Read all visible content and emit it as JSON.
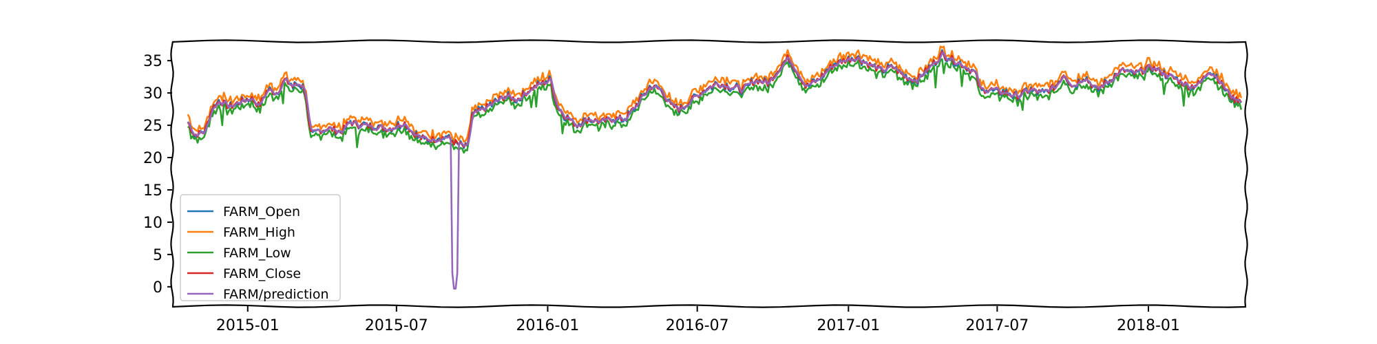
{
  "chart_data": {
    "type": "line",
    "title": "",
    "xlabel": "",
    "ylabel": "",
    "x_range": [
      "2014-10-01",
      "2018-04-30"
    ],
    "ylim": [
      -3,
      38
    ],
    "x_ticks": [
      "2015-01",
      "2015-07",
      "2016-01",
      "2016-07",
      "2017-01",
      "2017-07",
      "2018-01"
    ],
    "y_ticks": [
      0,
      5,
      10,
      15,
      20,
      25,
      30,
      35
    ],
    "legend_position": "lower-left",
    "grid": false,
    "colors": {
      "open": "#1f77b4",
      "high": "#ff7f0e",
      "low": "#2ca02c",
      "close": "#d62728",
      "prediction": "#9467bd"
    },
    "series": [
      {
        "name": "FARM_Open",
        "color": "#1f77b4"
      },
      {
        "name": "FARM_High",
        "color": "#ff7f0e"
      },
      {
        "name": "FARM_Low",
        "color": "#2ca02c"
      },
      {
        "name": "FARM_Close",
        "color": "#d62728"
      },
      {
        "name": "FARM/prediction",
        "color": "#9467bd"
      }
    ],
    "close_points": [
      [
        "2014-10-20",
        25.5
      ],
      [
        "2014-10-28",
        23.5
      ],
      [
        "2014-11-10",
        24.0
      ],
      [
        "2014-11-18",
        27.5
      ],
      [
        "2014-11-28",
        28.8
      ],
      [
        "2014-12-10",
        27.8
      ],
      [
        "2014-12-20",
        28.5
      ],
      [
        "2015-01-05",
        29.2
      ],
      [
        "2015-01-15",
        28.0
      ],
      [
        "2015-01-25",
        30.5
      ],
      [
        "2015-02-05",
        30.0
      ],
      [
        "2015-02-15",
        32.0
      ],
      [
        "2015-02-25",
        31.0
      ],
      [
        "2015-03-05",
        31.5
      ],
      [
        "2015-03-12",
        30.5
      ],
      [
        "2015-03-18",
        23.5
      ],
      [
        "2015-03-28",
        24.2
      ],
      [
        "2015-04-10",
        24.5
      ],
      [
        "2015-04-25",
        24.0
      ],
      [
        "2015-05-05",
        25.5
      ],
      [
        "2015-05-20",
        25.0
      ],
      [
        "2015-06-05",
        24.8
      ],
      [
        "2015-06-20",
        24.5
      ],
      [
        "2015-07-01",
        24.8
      ],
      [
        "2015-07-10",
        25.5
      ],
      [
        "2015-07-20",
        24.0
      ],
      [
        "2015-07-30",
        23.0
      ],
      [
        "2015-08-15",
        22.8
      ],
      [
        "2015-08-30",
        23.2
      ],
      [
        "2015-09-08",
        22.5
      ],
      [
        "2015-09-15",
        22.0
      ],
      [
        "2015-09-25",
        21.5
      ],
      [
        "2015-10-01",
        26.5
      ],
      [
        "2015-10-15",
        27.5
      ],
      [
        "2015-10-28",
        28.5
      ],
      [
        "2015-11-10",
        29.5
      ],
      [
        "2015-11-25",
        29.0
      ],
      [
        "2015-12-10",
        30.5
      ],
      [
        "2015-12-25",
        31.5
      ],
      [
        "2016-01-05",
        32.0
      ],
      [
        "2016-01-12",
        28.0
      ],
      [
        "2016-01-22",
        26.5
      ],
      [
        "2016-02-05",
        25.0
      ],
      [
        "2016-02-20",
        26.0
      ],
      [
        "2016-03-05",
        25.5
      ],
      [
        "2016-03-20",
        26.0
      ],
      [
        "2016-04-05",
        26.0
      ],
      [
        "2016-04-20",
        28.5
      ],
      [
        "2016-05-05",
        31.0
      ],
      [
        "2016-05-18",
        30.5
      ],
      [
        "2016-05-30",
        28.0
      ],
      [
        "2016-06-10",
        27.5
      ],
      [
        "2016-06-25",
        29.0
      ],
      [
        "2016-07-10",
        30.5
      ],
      [
        "2016-07-25",
        31.5
      ],
      [
        "2016-08-10",
        31.0
      ],
      [
        "2016-08-25",
        30.5
      ],
      [
        "2016-09-10",
        32.0
      ],
      [
        "2016-09-25",
        31.5
      ],
      [
        "2016-10-10",
        34.0
      ],
      [
        "2016-10-20",
        35.5
      ],
      [
        "2016-11-01",
        33.0
      ],
      [
        "2016-11-10",
        31.0
      ],
      [
        "2016-11-25",
        32.0
      ],
      [
        "2016-12-10",
        34.0
      ],
      [
        "2016-12-25",
        35.0
      ],
      [
        "2017-01-10",
        35.5
      ],
      [
        "2017-01-25",
        34.5
      ],
      [
        "2017-02-10",
        33.5
      ],
      [
        "2017-02-25",
        34.0
      ],
      [
        "2017-03-10",
        32.5
      ],
      [
        "2017-03-25",
        32.0
      ],
      [
        "2017-04-10",
        34.0
      ],
      [
        "2017-04-25",
        36.0
      ],
      [
        "2017-05-10",
        35.0
      ],
      [
        "2017-05-25",
        34.0
      ],
      [
        "2017-06-05",
        33.0
      ],
      [
        "2017-06-10",
        30.5
      ],
      [
        "2017-06-25",
        30.5
      ],
      [
        "2017-07-10",
        30.0
      ],
      [
        "2017-07-25",
        29.5
      ],
      [
        "2017-08-10",
        30.5
      ],
      [
        "2017-08-25",
        30.0
      ],
      [
        "2017-09-10",
        31.0
      ],
      [
        "2017-09-20",
        33.0
      ],
      [
        "2017-10-01",
        31.0
      ],
      [
        "2017-10-15",
        32.5
      ],
      [
        "2017-10-30",
        30.5
      ],
      [
        "2017-11-15",
        32.0
      ],
      [
        "2017-11-30",
        33.5
      ],
      [
        "2017-12-15",
        33.0
      ],
      [
        "2018-01-05",
        34.0
      ],
      [
        "2018-01-20",
        33.0
      ],
      [
        "2018-02-05",
        32.0
      ],
      [
        "2018-02-20",
        31.0
      ],
      [
        "2018-03-05",
        31.5
      ],
      [
        "2018-03-15",
        33.5
      ],
      [
        "2018-03-25",
        32.5
      ],
      [
        "2018-04-05",
        30.5
      ],
      [
        "2018-04-15",
        29.0
      ],
      [
        "2018-04-25",
        29.0
      ]
    ],
    "prediction_anomaly": {
      "date": "2015-09-10",
      "min_value": -1.5
    }
  }
}
